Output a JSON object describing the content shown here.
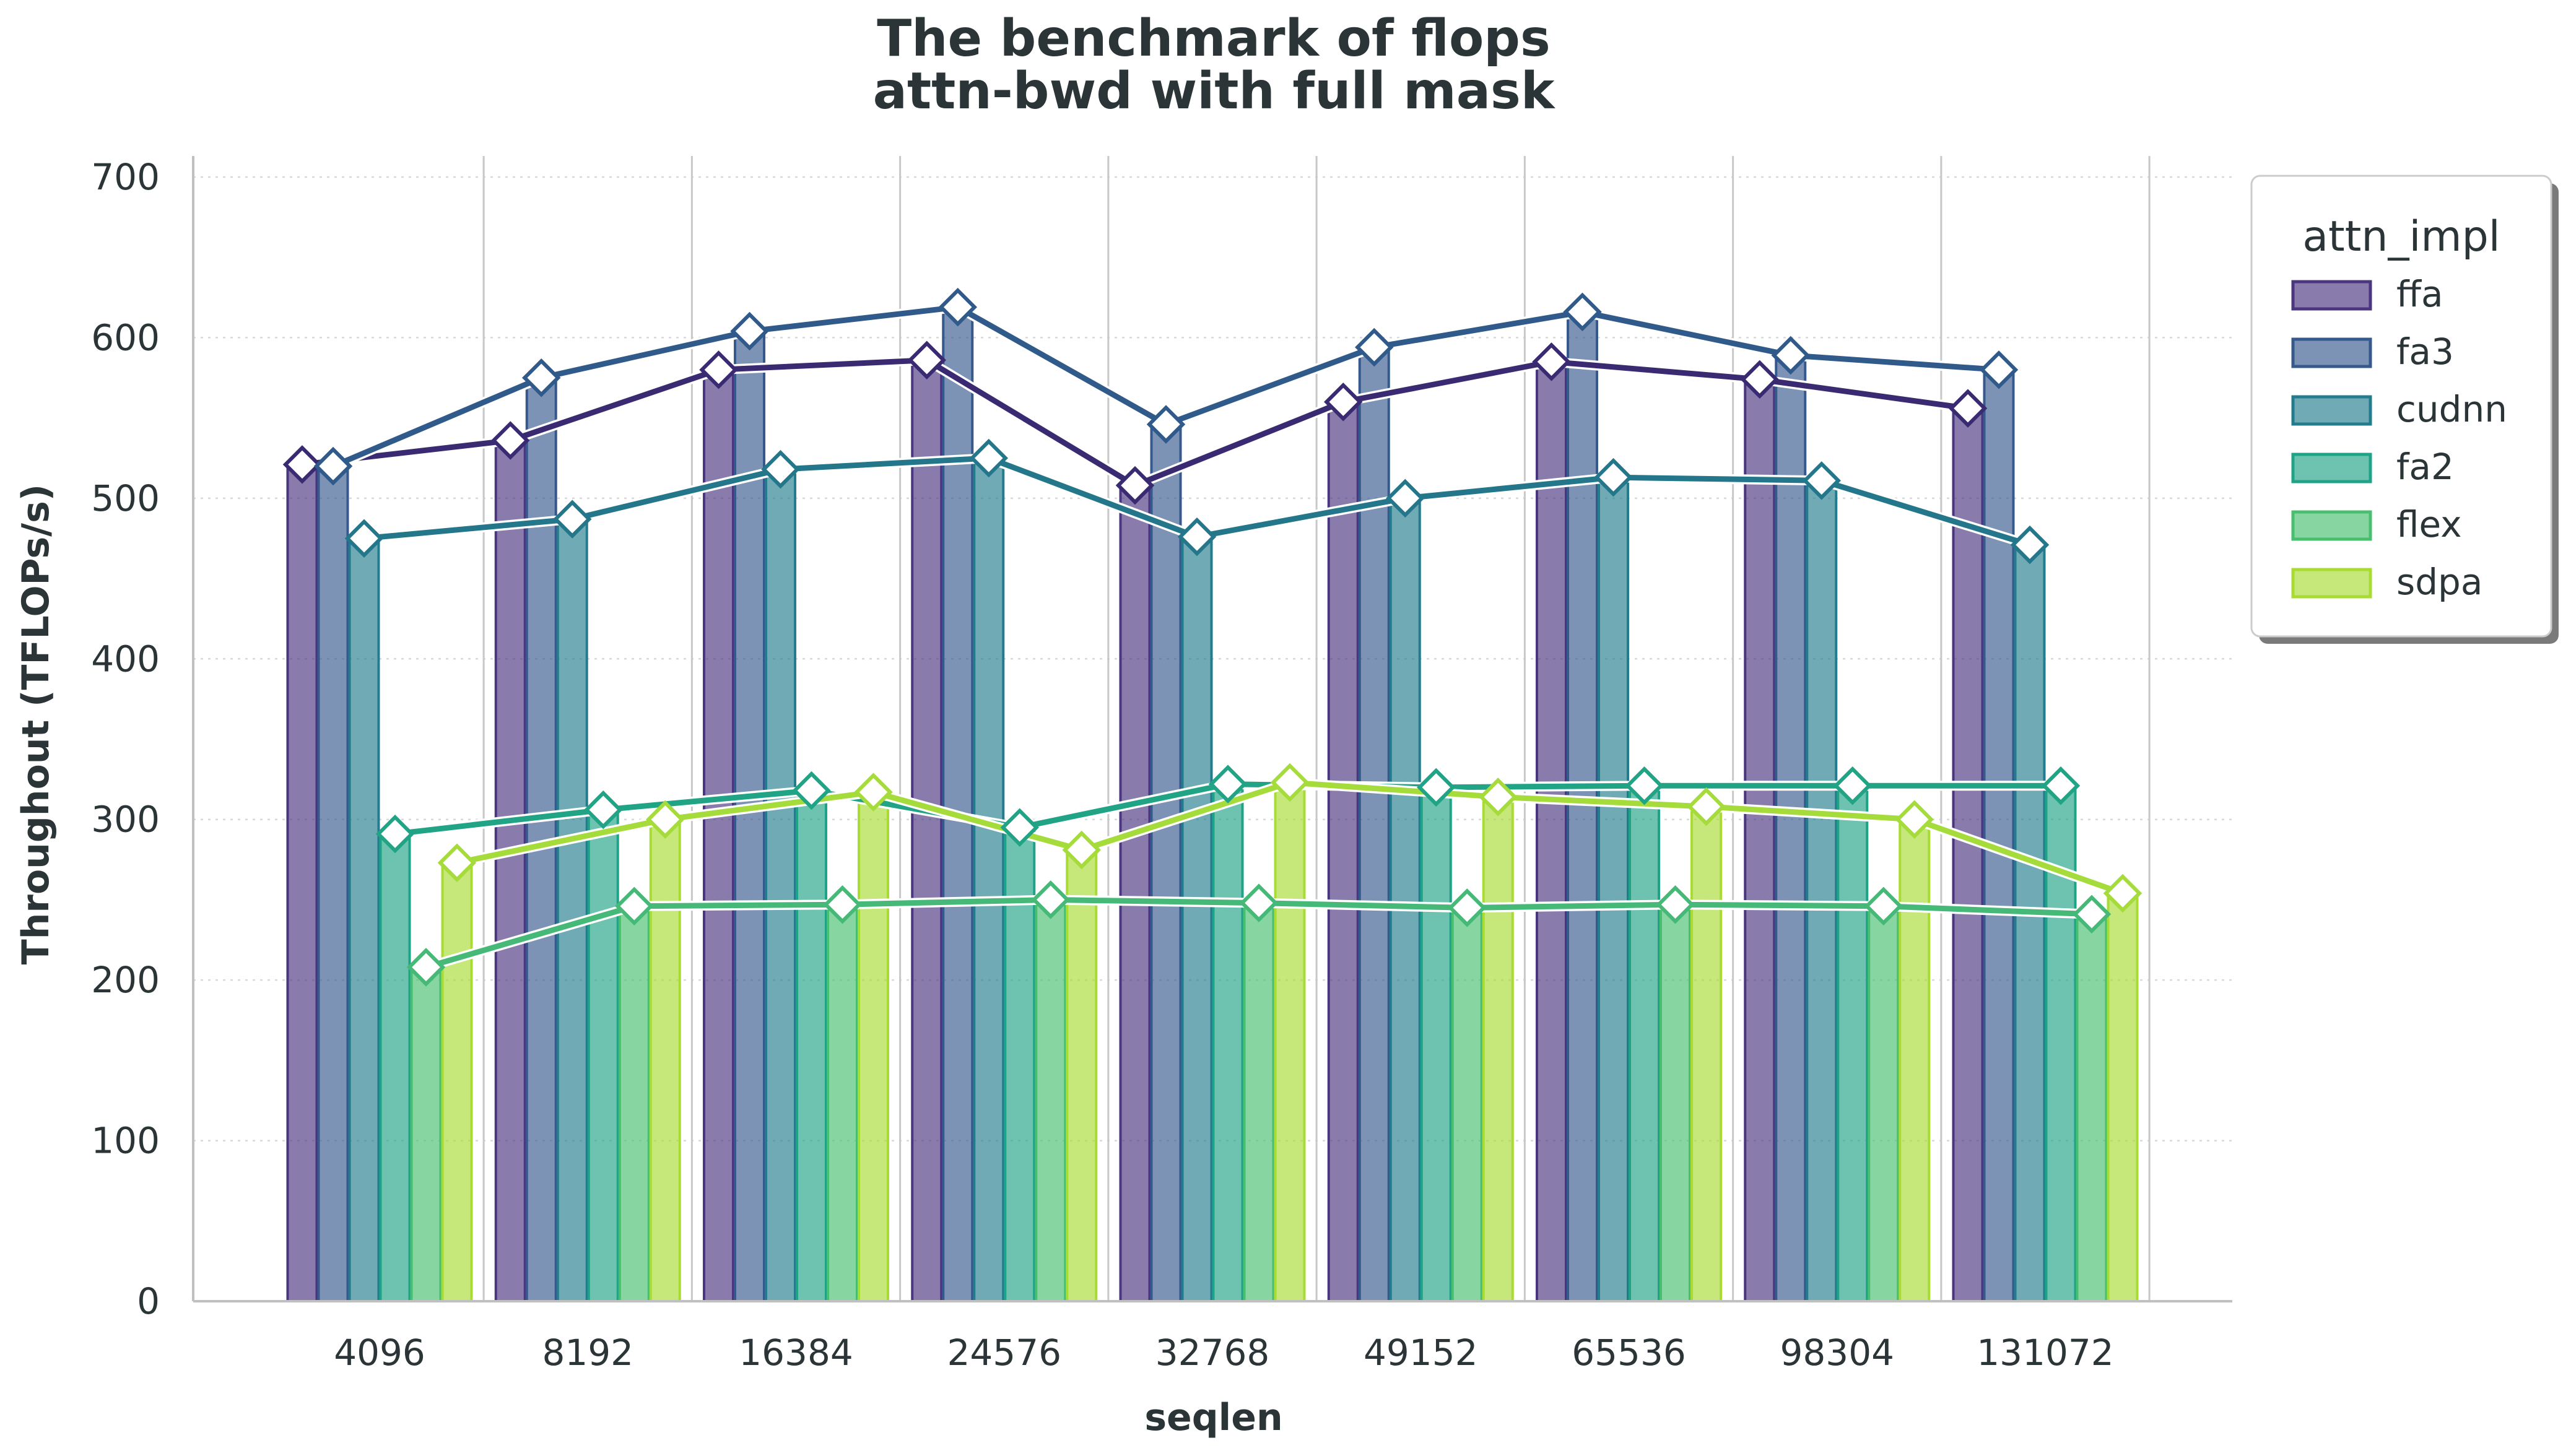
{
  "chart_data": {
    "type": "bar",
    "title": "The benchmark of flops",
    "subtitle": "attn-bwd with full mask",
    "xlabel": "seqlen",
    "ylabel": "Throughout (TFLOPs/s)",
    "ylim": [
      0,
      700
    ],
    "yticks": [
      0,
      100,
      200,
      300,
      400,
      500,
      600,
      700
    ],
    "categories": [
      "4096",
      "8192",
      "16384",
      "24576",
      "32768",
      "49152",
      "65536",
      "98304",
      "131072"
    ],
    "legend": {
      "title": "attn_impl",
      "placement": "upper-right-outside"
    },
    "grid": {
      "x": true,
      "y": true
    },
    "overlay_lines": true,
    "series": [
      {
        "name": "ffa",
        "color": "#4a357f",
        "line_color": "#3a2a72",
        "values": [
          521,
          536,
          580,
          586,
          508,
          560,
          585,
          574,
          556
        ]
      },
      {
        "name": "fa3",
        "color": "#35598d",
        "line_color": "#2f5a8a",
        "values": [
          520,
          575,
          604,
          619,
          546,
          594,
          616,
          589,
          580
        ]
      },
      {
        "name": "cudnn",
        "color": "#227c8d",
        "line_color": "#24778a",
        "values": [
          475,
          487,
          518,
          525,
          476,
          500,
          513,
          511,
          471
        ]
      },
      {
        "name": "fa2",
        "color": "#1fa386",
        "line_color": "#21a385",
        "values": [
          291,
          306,
          318,
          295,
          322,
          320,
          321,
          321,
          321
        ]
      },
      {
        "name": "flex",
        "color": "#47bf6e",
        "line_color": "#46b877",
        "values": [
          208,
          246,
          247,
          250,
          248,
          245,
          247,
          246,
          241
        ]
      },
      {
        "name": "sdpa",
        "color": "#a8dc33",
        "line_color": "#a5db3a",
        "values": [
          273,
          300,
          317,
          281,
          323,
          314,
          308,
          300,
          254
        ]
      }
    ]
  }
}
